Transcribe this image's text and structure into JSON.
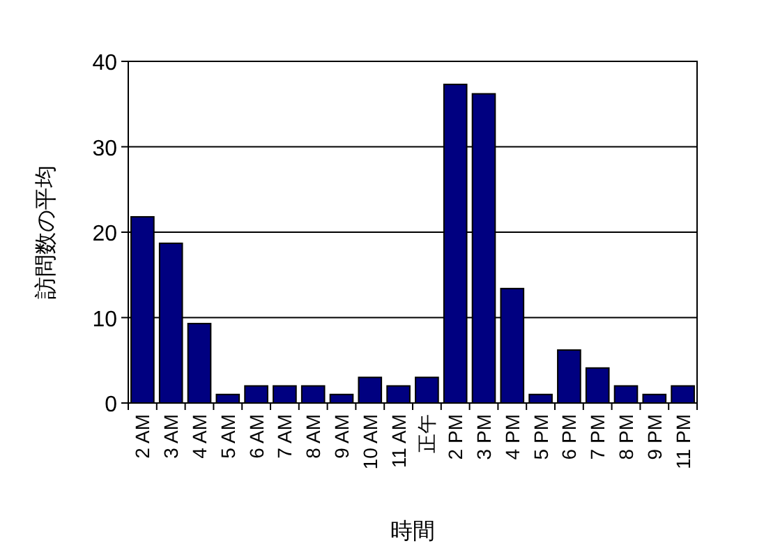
{
  "chart_data": {
    "type": "bar",
    "xlabel": "時間",
    "ylabel": "訪問数の平均",
    "categories": [
      "2 AM",
      "3 AM",
      "4 AM",
      "5 AM",
      "6 AM",
      "7 AM",
      "8 AM",
      "9 AM",
      "10 AM",
      "11 AM",
      "正午",
      "2 PM",
      "3 PM",
      "4 PM",
      "5 PM",
      "6 PM",
      "7 PM",
      "8 PM",
      "9 PM",
      "11 PM"
    ],
    "values": [
      21.8,
      18.7,
      9.3,
      1,
      2,
      2,
      2,
      1,
      3,
      2,
      3,
      37.3,
      36.2,
      13.4,
      1,
      6.2,
      4.1,
      2,
      1,
      2
    ],
    "color": "#000080",
    "ylim": [
      0,
      40
    ],
    "yticks": [
      0,
      10,
      20,
      30,
      40
    ],
    "grid": "y"
  }
}
